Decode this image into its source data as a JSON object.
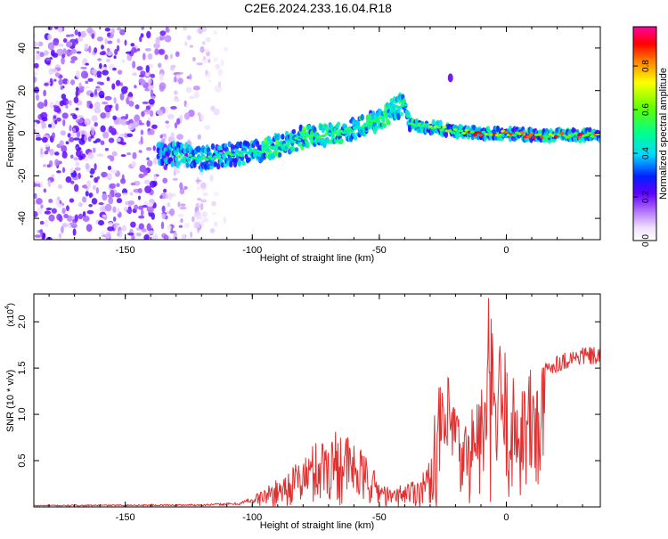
{
  "title": "C2E6.2024.233.16.04.R18",
  "colorbar": {
    "label": "Normalized spectral amplitude",
    "ticks": [
      "0.0",
      "0.2",
      "0.4",
      "0.6",
      "0.8"
    ],
    "tick_values": [
      0.0,
      0.2,
      0.4,
      0.6,
      0.8
    ],
    "range": [
      0,
      0.98
    ]
  },
  "chart_data": [
    {
      "type": "heatmap",
      "xlabel": "Height of straight line (km)",
      "ylabel": "Frequency (Hz)",
      "xlim": [
        -186,
        37
      ],
      "ylim": [
        -50,
        50
      ],
      "xticks": [
        -150,
        -100,
        -50,
        0
      ],
      "xtick_labels": [
        "-150",
        "-100",
        "-50",
        "0"
      ],
      "yticks": [
        -40,
        -20,
        0,
        20,
        40
      ],
      "ytick_labels": [
        "-40",
        "-20",
        "0",
        "20",
        "40"
      ],
      "colormap": "rainbow-white-low",
      "ridge": [
        {
          "x": -135,
          "y": -9
        },
        {
          "x": -120,
          "y": -12
        },
        {
          "x": -110,
          "y": -10
        },
        {
          "x": -100,
          "y": -9
        },
        {
          "x": -90,
          "y": -6
        },
        {
          "x": -80,
          "y": -2
        },
        {
          "x": -70,
          "y": -1
        },
        {
          "x": -60,
          "y": 2
        },
        {
          "x": -50,
          "y": 6
        },
        {
          "x": -45,
          "y": 11
        },
        {
          "x": -40,
          "y": 14
        },
        {
          "x": -38,
          "y": 4
        },
        {
          "x": -30,
          "y": 3
        },
        {
          "x": -20,
          "y": 1
        },
        {
          "x": -10,
          "y": 0
        },
        {
          "x": 0,
          "y": 0
        },
        {
          "x": 10,
          "y": -1
        },
        {
          "x": 20,
          "y": -1
        },
        {
          "x": 30,
          "y": -1
        },
        {
          "x": 37,
          "y": -1
        }
      ],
      "noise_region_x": [
        -186,
        -110
      ],
      "legend": "none"
    },
    {
      "type": "line",
      "xlabel": "Height of straight line (km)",
      "ylabel": "SNR (10 * v/v)",
      "yunit_label": "(x10",
      "yunit_exponent": "4",
      "yunit_close": ")",
      "xlim": [
        -186,
        37
      ],
      "ylim": [
        0,
        2.3
      ],
      "xticks": [
        -150,
        -100,
        -50,
        0
      ],
      "xtick_labels": [
        "-150",
        "-100",
        "-50",
        "0"
      ],
      "yticks": [
        0.5,
        1.0,
        1.5,
        2.0
      ],
      "ytick_labels": [
        "0.5",
        "1.0",
        "1.5",
        "2.0"
      ],
      "color": "#e03030",
      "envelope": [
        {
          "x": -186,
          "y": 0.02
        },
        {
          "x": -120,
          "y": 0.03
        },
        {
          "x": -105,
          "y": 0.05
        },
        {
          "x": -100,
          "y": 0.12
        },
        {
          "x": -90,
          "y": 0.3
        },
        {
          "x": -85,
          "y": 0.42
        },
        {
          "x": -80,
          "y": 0.55
        },
        {
          "x": -75,
          "y": 0.72
        },
        {
          "x": -70,
          "y": 0.82
        },
        {
          "x": -65,
          "y": 0.88
        },
        {
          "x": -60,
          "y": 0.7
        },
        {
          "x": -55,
          "y": 0.55
        },
        {
          "x": -50,
          "y": 0.3
        },
        {
          "x": -45,
          "y": 0.18
        },
        {
          "x": -40,
          "y": 0.28
        },
        {
          "x": -35,
          "y": 0.32
        },
        {
          "x": -30,
          "y": 0.5
        },
        {
          "x": -28,
          "y": 1.15
        },
        {
          "x": -25,
          "y": 1.45
        },
        {
          "x": -20,
          "y": 1.35
        },
        {
          "x": -18,
          "y": 0.8
        },
        {
          "x": -12,
          "y": 1.25
        },
        {
          "x": -8,
          "y": 1.45
        },
        {
          "x": -7,
          "y": 2.3
        },
        {
          "x": -4,
          "y": 1.6
        },
        {
          "x": -2,
          "y": 1.95
        },
        {
          "x": 2,
          "y": 1.4
        },
        {
          "x": 5,
          "y": 1.45
        },
        {
          "x": 10,
          "y": 1.55
        },
        {
          "x": 15,
          "y": 1.58
        },
        {
          "x": 20,
          "y": 1.65
        },
        {
          "x": 25,
          "y": 1.7
        },
        {
          "x": 30,
          "y": 1.74
        },
        {
          "x": 37,
          "y": 1.72
        }
      ],
      "legend": "none"
    }
  ]
}
